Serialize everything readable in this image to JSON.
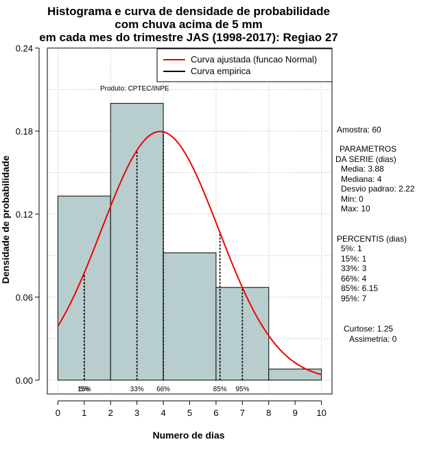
{
  "chart_data": {
    "type": "bar",
    "title_lines": [
      "Histograma e curva de densidade de probabilidade",
      "com chuva acima de 5 mm",
      "em cada mes do trimestre JAS (1998-2017): Regiao 27"
    ],
    "xlabel": "Numero de dias",
    "ylabel": "Densidade de probabilidade",
    "xlim": [
      -0.4,
      10.4
    ],
    "ylim": [
      -0.01,
      0.24
    ],
    "x_ticks": [
      "0",
      "1",
      "2",
      "3",
      "4",
      "5",
      "6",
      "7",
      "8",
      "9",
      "10"
    ],
    "y_ticks": [
      "0.00",
      "0.06",
      "0.12",
      "0.18",
      "0.24"
    ],
    "bins": [
      {
        "from": 0,
        "to": 2,
        "density": 0.133
      },
      {
        "from": 2,
        "to": 4,
        "density": 0.2
      },
      {
        "from": 4,
        "to": 6,
        "density": 0.092
      },
      {
        "from": 6,
        "to": 8,
        "density": 0.067
      },
      {
        "from": 8,
        "to": 10,
        "density": 0.008
      }
    ],
    "normal_curve": {
      "mean": 3.88,
      "sd": 2.22,
      "color": "#ee0000"
    },
    "bar_color": "#b8cece",
    "percentile_marks": [
      {
        "label": "5%",
        "x": 1
      },
      {
        "label": "15%",
        "x": 1
      },
      {
        "label": "33%",
        "x": 3
      },
      {
        "label": "66%",
        "x": 4
      },
      {
        "label": "85%",
        "x": 6.15
      },
      {
        "label": "95%",
        "x": 7
      }
    ],
    "legend": [
      {
        "label": "Curva ajustada (funcao Normal)",
        "color": "#ee0000"
      },
      {
        "label": "Curva empirica",
        "color": "#000000"
      }
    ],
    "legend_position": "top-right",
    "product_label": "Produto: CPTEC/INPE",
    "grid": true
  },
  "stats": {
    "amostra": "Amostra: 60",
    "params_header_1": "PARAMETROS",
    "params_header_2": "DA SERIE (dias)",
    "media": "Media: 3.88",
    "mediana": "Mediana: 4",
    "desvio": "Desvio padrao: 2.22",
    "min": "Min: 0",
    "max": "Max: 10",
    "percentis_header": "PERCENTIS (dias)",
    "p5": "5%: 1",
    "p15": "15%: 1",
    "p33": "33%: 3",
    "p66": "66%: 4",
    "p85": "85%: 6.15",
    "p95": "95%: 7",
    "curtose": "Curtose: 1.25",
    "assimetria": "Assimetria: 0"
  }
}
